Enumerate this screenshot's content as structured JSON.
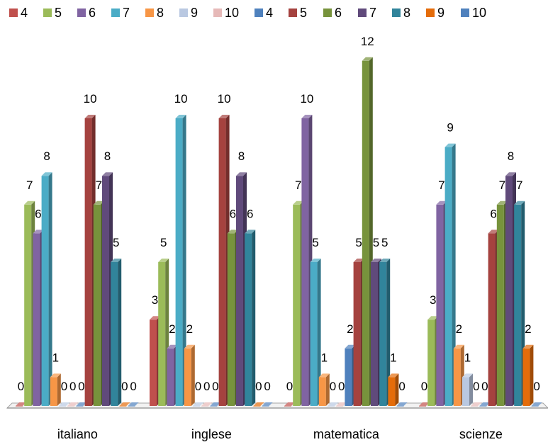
{
  "chart_data": {
    "type": "bar",
    "style": "3d-clustered-column",
    "categories": [
      "italiano",
      "inglese",
      "matematica",
      "scienze"
    ],
    "series": [
      {
        "name": "4",
        "color": "#C0504D",
        "values": [
          0,
          3,
          0,
          0
        ]
      },
      {
        "name": "5",
        "color": "#9BBB59",
        "values": [
          7,
          5,
          7,
          3
        ]
      },
      {
        "name": "6",
        "color": "#8064A2",
        "values": [
          6,
          2,
          10,
          7
        ]
      },
      {
        "name": "7",
        "color": "#4BACC6",
        "values": [
          8,
          10,
          5,
          9
        ]
      },
      {
        "name": "8",
        "color": "#F79646",
        "values": [
          1,
          2,
          1,
          2
        ]
      },
      {
        "name": "9",
        "color": "#B9C8E1",
        "values": [
          0,
          0,
          0,
          1
        ]
      },
      {
        "name": "10",
        "color": "#E6B9B8",
        "values": [
          0,
          0,
          0,
          0
        ]
      },
      {
        "name": "4",
        "color": "#4F81BD",
        "values": [
          0,
          0,
          2,
          0
        ]
      },
      {
        "name": "5",
        "color": "#A5423F",
        "values": [
          10,
          10,
          5,
          6
        ]
      },
      {
        "name": "6",
        "color": "#77933C",
        "values": [
          7,
          6,
          12,
          7
        ]
      },
      {
        "name": "7",
        "color": "#604A7B",
        "values": [
          8,
          8,
          5,
          8
        ]
      },
      {
        "name": "8",
        "color": "#31849B",
        "values": [
          5,
          6,
          5,
          7
        ]
      },
      {
        "name": "9",
        "color": "#E46C0A",
        "values": [
          0,
          0,
          1,
          2
        ]
      },
      {
        "name": "10",
        "color": "#4F81BD",
        "values": [
          0,
          0,
          0,
          0
        ]
      }
    ],
    "data_labels": true,
    "ylim": [
      0,
      12
    ],
    "legend_position": "top",
    "grid": false,
    "title": "",
    "xlabel": "",
    "ylabel": ""
  }
}
